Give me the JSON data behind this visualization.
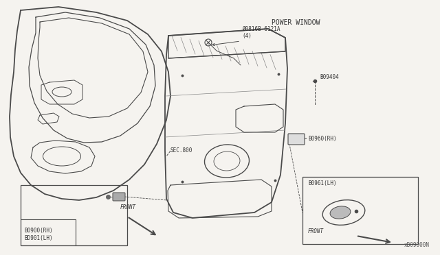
{
  "bg_color": "#f5f3ef",
  "line_color": "#4a4a4a",
  "title": "POWER WINDOW",
  "catalog": "xB09000N",
  "labels": {
    "screw": "Ø0816B-6121A\n(4)",
    "b09404": "B09404",
    "b0960": "B0960(RH)",
    "sec800": "SEC.800",
    "b0900": "B0900(RH)\nBD901(LH)",
    "b0961": "B0961(LH)",
    "front1": "FRONT",
    "front2": "FRONT"
  }
}
